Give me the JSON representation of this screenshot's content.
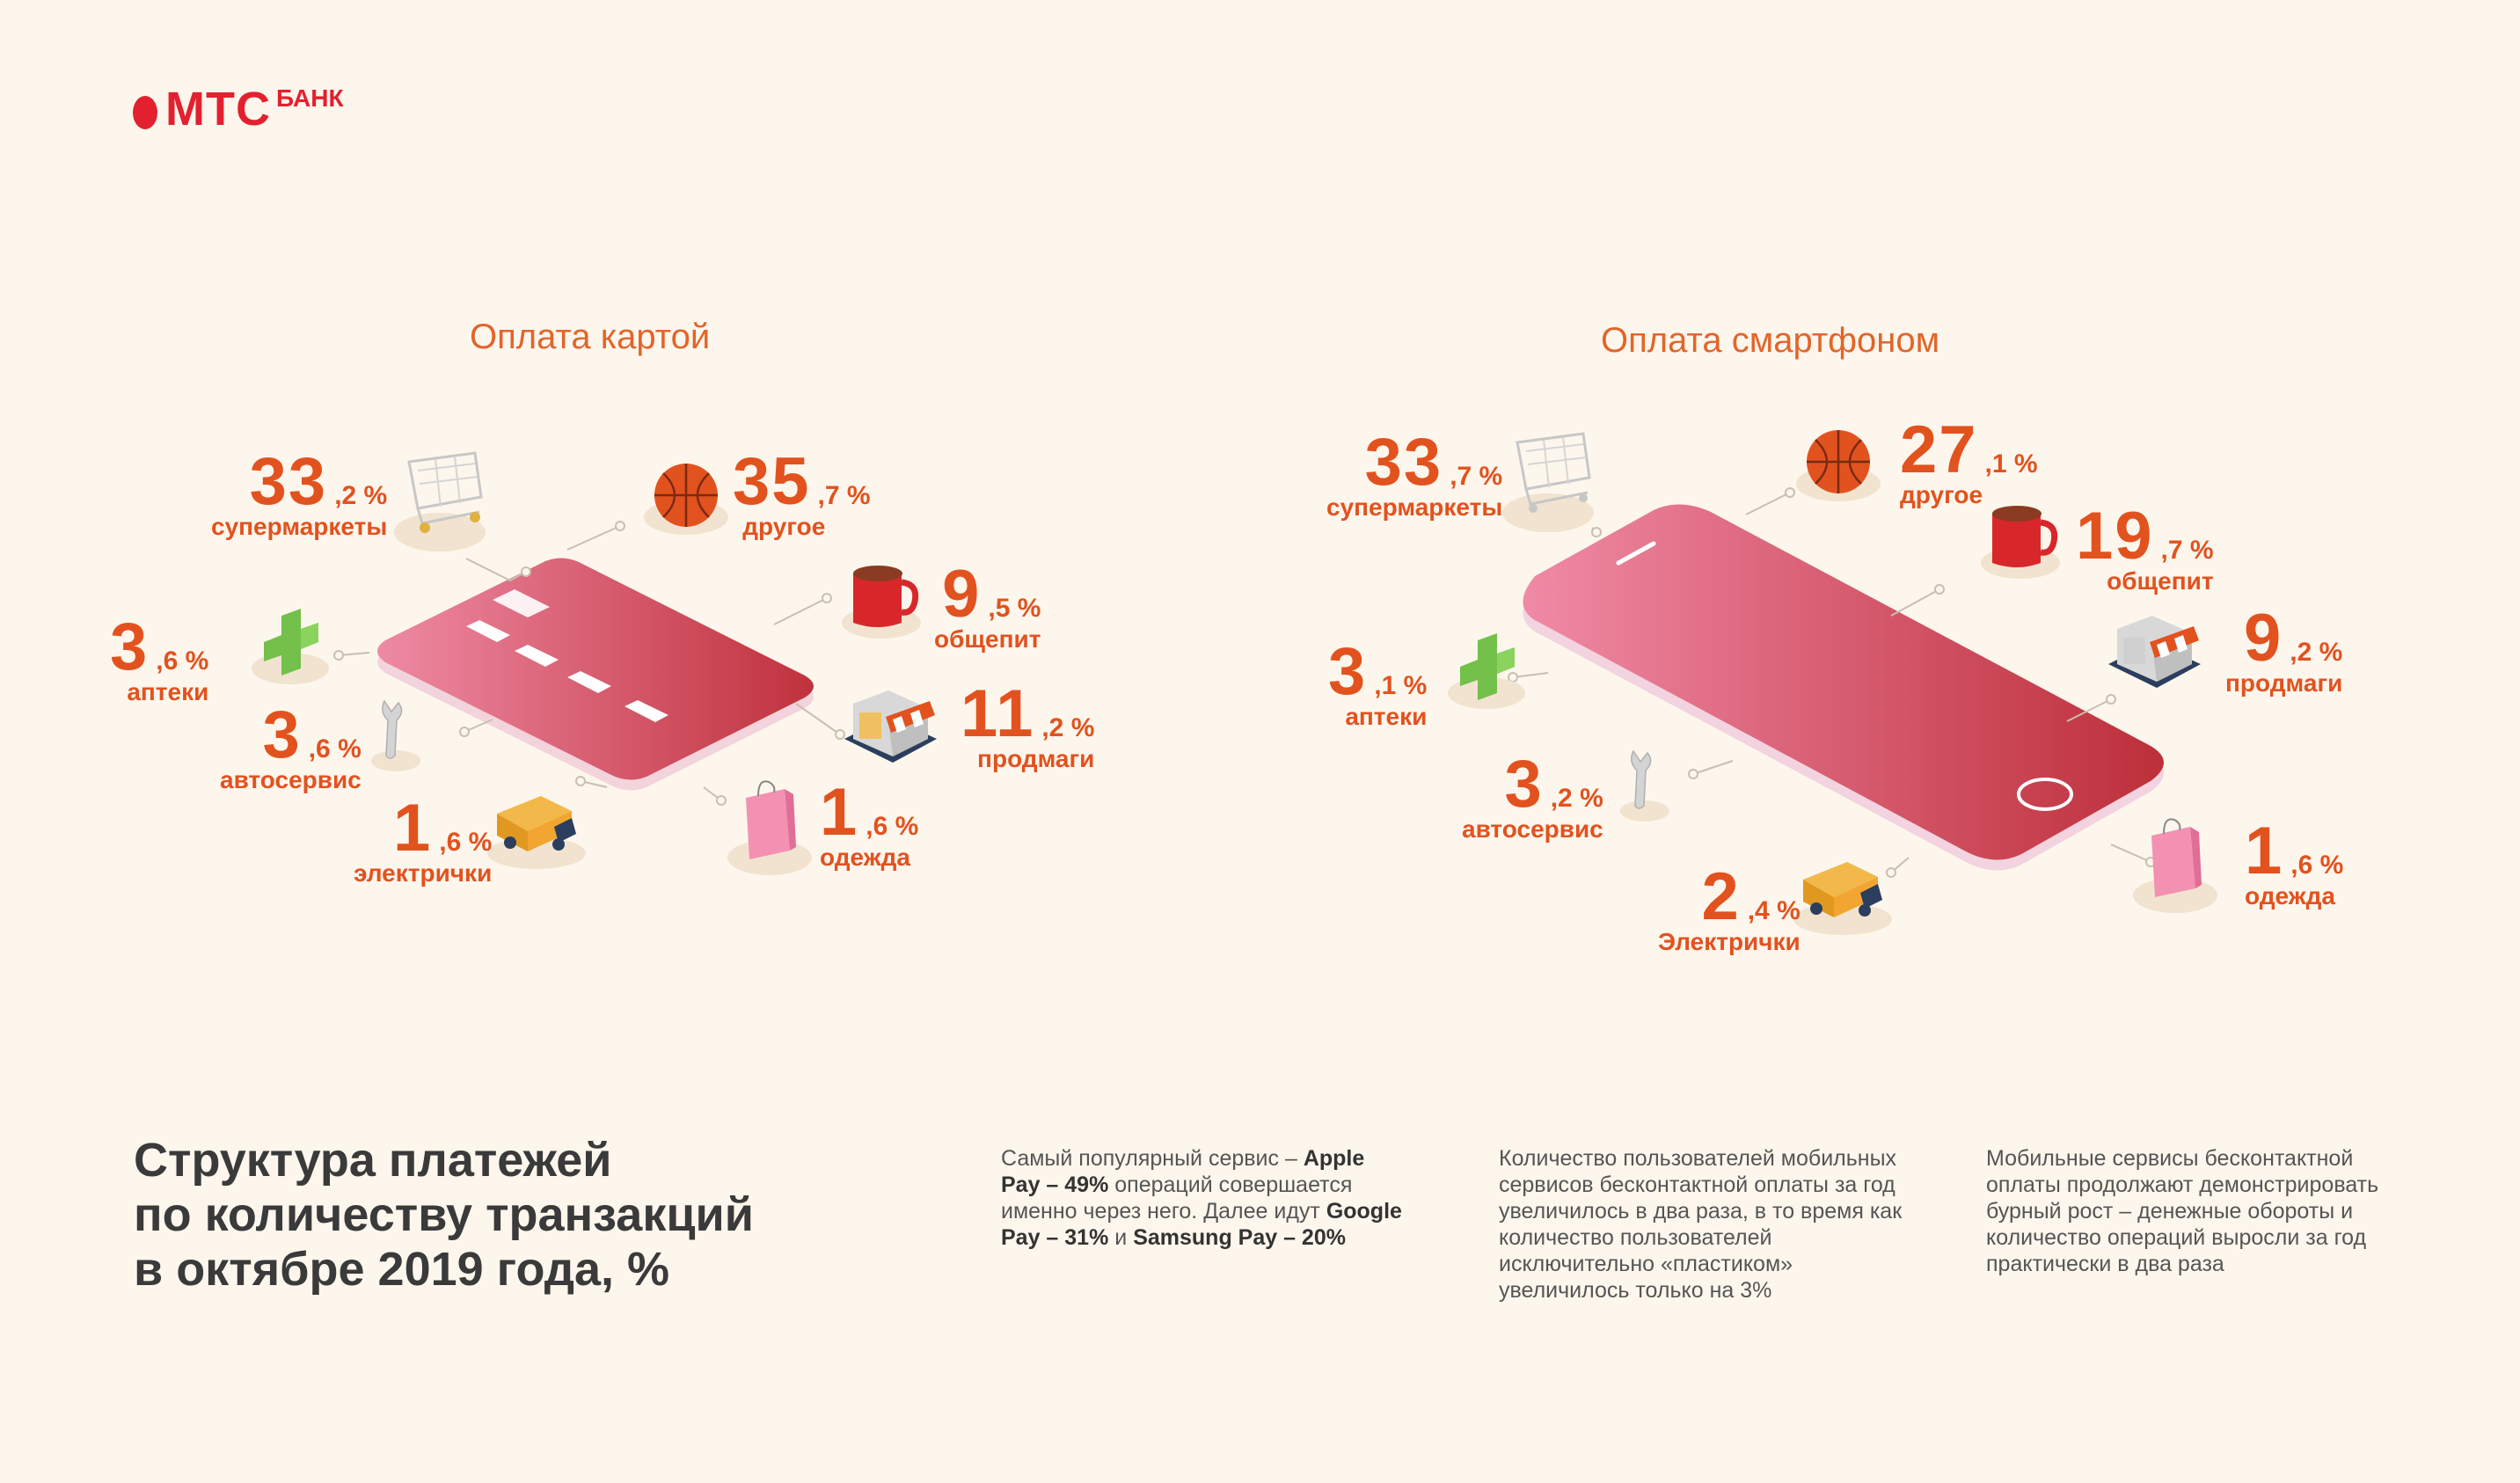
{
  "brand": {
    "name": "МТС",
    "sub": "БАНК",
    "color": "#e3202f"
  },
  "accent_color": "#e2521f",
  "headline": "Структура платежей по количеству транзакций в октябре 2019 года, %",
  "headline_lines": [
    "Структура платежей",
    "по количеству транзакций",
    "в октябре 2019 года, %"
  ],
  "chart_data": [
    {
      "type": "table",
      "title": "Оплата картой",
      "categories": [
        "супермаркеты",
        "другое",
        "общепит",
        "продмаги",
        "аптеки",
        "автосервис",
        "электрички",
        "одежда"
      ],
      "values": [
        33.2,
        35.7,
        9.5,
        11.2,
        3.6,
        3.6,
        1.6,
        1.6
      ],
      "unit": "%",
      "icons": [
        "shopping-cart-icon",
        "basketball-icon",
        "mug-icon",
        "shop-icon",
        "pharmacy-cross-icon",
        "wrench-icon",
        "truck-icon",
        "shopping-bag-icon"
      ],
      "items": [
        {
          "int": "33",
          "dec": ",2 %",
          "cat": "супермаркеты"
        },
        {
          "int": "35",
          "dec": ",7 %",
          "cat": "другое"
        },
        {
          "int": "9",
          "dec": ",5 %",
          "cat": "общепит"
        },
        {
          "int": "11",
          "dec": ",2 %",
          "cat": "продмаги"
        },
        {
          "int": "3",
          "dec": ",6 %",
          "cat": "аптеки"
        },
        {
          "int": "3",
          "dec": ",6 %",
          "cat": "автосервис"
        },
        {
          "int": "1",
          "dec": ",6 %",
          "cat": "электрички"
        },
        {
          "int": "1",
          "dec": ",6 %",
          "cat": "одежда"
        }
      ]
    },
    {
      "type": "table",
      "title": "Оплата смартфоном",
      "categories": [
        "супермаркеты",
        "другое",
        "общепит",
        "продмаги",
        "аптеки",
        "автосервис",
        "Электрички",
        "одежда"
      ],
      "values": [
        33.7,
        27.1,
        19.7,
        9.2,
        3.1,
        3.2,
        2.4,
        1.6
      ],
      "unit": "%",
      "icons": [
        "shopping-cart-icon",
        "basketball-icon",
        "mug-icon",
        "shop-icon",
        "pharmacy-cross-icon",
        "wrench-icon",
        "truck-icon",
        "shopping-bag-icon"
      ],
      "items": [
        {
          "int": "33",
          "dec": ",7 %",
          "cat": "супермаркеты"
        },
        {
          "int": "27",
          "dec": ",1 %",
          "cat": "другое"
        },
        {
          "int": "19",
          "dec": ",7 %",
          "cat": "общепит"
        },
        {
          "int": "9",
          "dec": ",2 %",
          "cat": "продмаги"
        },
        {
          "int": "3",
          "dec": ",1 %",
          "cat": "аптеки"
        },
        {
          "int": "3",
          "dec": ",2 %",
          "cat": "автосервис"
        },
        {
          "int": "2",
          "dec": ",4 %",
          "cat": "Электрички"
        },
        {
          "int": "1",
          "dec": ",6 %",
          "cat": "одежда"
        }
      ]
    }
  ],
  "notes": [
    {
      "parts": [
        {
          "t": "Самый популярный сервис – ",
          "b": false
        },
        {
          "t": "Apple Pay – 49%",
          "b": true
        },
        {
          "t": " операций совершается именно через него. Далее идут ",
          "b": false
        },
        {
          "t": "Google Pay – 31%",
          "b": true
        },
        {
          "t": " и ",
          "b": false
        },
        {
          "t": "Samsung Pay – 20%",
          "b": true
        }
      ]
    },
    {
      "parts": [
        {
          "t": "Количество пользователей мобильных сервисов бесконтактной оплаты за год увеличилось в два раза, в то время как количество пользователей исключительно «пластиком» увеличилось только на 3%",
          "b": false
        }
      ]
    },
    {
      "parts": [
        {
          "t": "Мобильные сервисы бесконтактной оплаты продолжают демонстрировать бурный рост – денежные обороты и количество операций выросли за год практически в два раза",
          "b": false
        }
      ]
    }
  ]
}
